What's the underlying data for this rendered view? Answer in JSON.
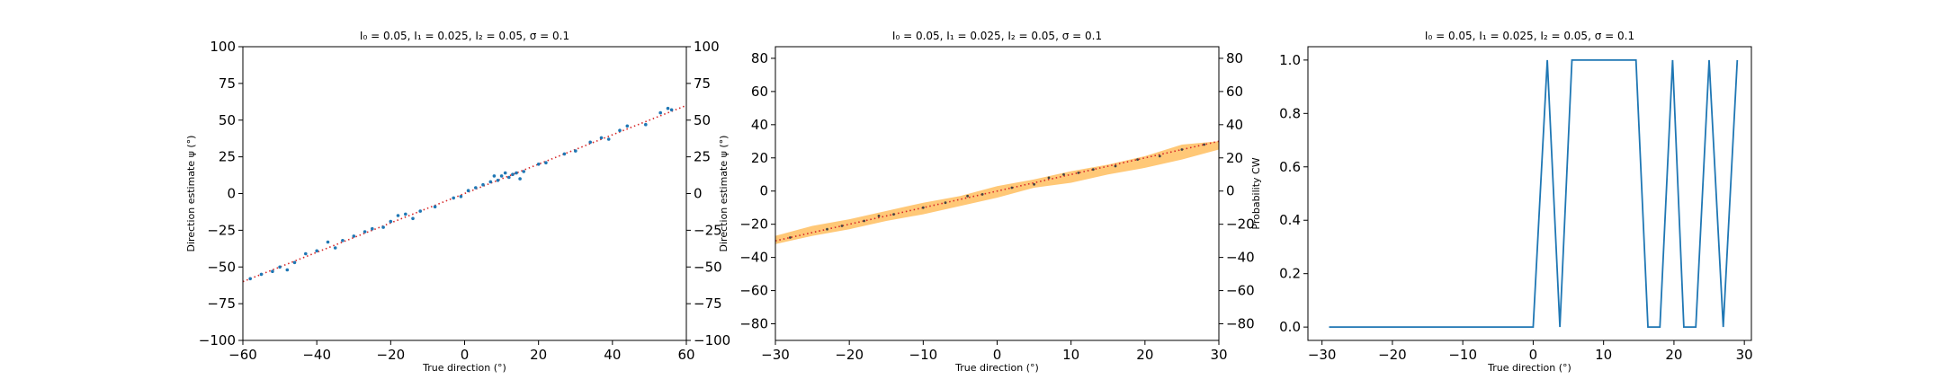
{
  "chart_data": [
    {
      "type": "scatter",
      "title": "I₀ = 0.05, I₁ = 0.025, I₂ = 0.05, σ = 0.1",
      "xlabel": "True direction (°)",
      "ylabel": "Direction estimate ψ (°)",
      "xlim": [
        -60,
        60
      ],
      "ylim": [
        -100,
        100
      ],
      "xticks": [
        -60,
        -40,
        -20,
        0,
        20,
        40,
        60
      ],
      "xtick_labels": [
        "−60",
        "−40",
        "−20",
        "0",
        "20",
        "40",
        "60"
      ],
      "yticks": [
        -100,
        -75,
        -50,
        -25,
        0,
        25,
        50,
        75,
        100
      ],
      "ytick_labels": [
        "−100",
        "−75",
        "−50",
        "−25",
        "0",
        "25",
        "50",
        "75",
        "100"
      ],
      "right_ytick_labels": [
        "−100",
        "−75",
        "−50",
        "−25",
        "0",
        "25",
        "50",
        "75",
        "100"
      ],
      "grid": false,
      "colors": {
        "points": "#1f77b4",
        "reference": "#d62728"
      },
      "reference_line": {
        "style": "dotted",
        "x": [
          -60,
          60
        ],
        "y": [
          -60,
          60
        ]
      },
      "series": [
        {
          "x": [
            -58,
            -55,
            -52,
            -50,
            -48,
            -46,
            -43,
            -40,
            -37,
            -35,
            -33,
            -30,
            -27,
            -25,
            -22,
            -20,
            -18,
            -16,
            -14,
            -12,
            -8,
            -3,
            -1,
            1,
            3,
            5,
            7,
            8,
            9,
            10,
            11,
            12,
            13,
            14,
            15,
            16,
            20,
            22,
            27,
            30,
            34,
            37,
            39,
            42,
            44,
            49,
            53,
            55,
            56
          ],
          "y": [
            -58,
            -55,
            -53,
            -50,
            -52,
            -47,
            -41,
            -39,
            -33,
            -37,
            -32,
            -29,
            -26,
            -24,
            -23,
            -19,
            -15,
            -14,
            -17,
            -12,
            -9,
            -3,
            -2,
            2,
            4,
            6,
            8,
            12,
            9,
            12,
            14,
            11,
            13,
            14,
            10,
            15,
            20,
            21,
            27,
            29,
            35,
            38,
            37,
            43,
            46,
            47,
            55,
            58,
            57
          ]
        }
      ]
    },
    {
      "type": "scatter",
      "title": "I₀ = 0.05, I₁ = 0.025, I₂ = 0.05, σ = 0.1",
      "xlabel": "True direction (°)",
      "ylabel": "Direction estimate ψ (°)",
      "xlim": [
        -30,
        30
      ],
      "ylim": [
        -90,
        87
      ],
      "xticks": [
        -30,
        -20,
        -10,
        0,
        10,
        20,
        30
      ],
      "xtick_labels": [
        "−30",
        "−20",
        "−10",
        "0",
        "10",
        "20",
        "30"
      ],
      "yticks": [
        -80,
        -60,
        -40,
        -20,
        0,
        20,
        40,
        60,
        80
      ],
      "ytick_labels": [
        "−80",
        "−60",
        "−40",
        "−20",
        "0",
        "20",
        "40",
        "60",
        "80"
      ],
      "right_ytick_labels": [
        "−80",
        "−60",
        "−40",
        "−20",
        "0",
        "20",
        "40",
        "60",
        "80"
      ],
      "grid": false,
      "colors": {
        "points": "#444444",
        "reference": "#d62728",
        "band": "#ffb54a"
      },
      "reference_line": {
        "style": "dotted",
        "x": [
          -30,
          30
        ],
        "y": [
          -30,
          30
        ]
      },
      "band": {
        "x": [
          -30,
          -25,
          -20,
          -15,
          -10,
          -5,
          0,
          5,
          10,
          15,
          20,
          25,
          30
        ],
        "lower": [
          -32,
          -27,
          -23,
          -18,
          -14,
          -9,
          -4,
          2,
          5,
          10,
          14,
          19,
          25
        ],
        "upper": [
          -27,
          -21,
          -17,
          -12,
          -7,
          -3,
          3,
          7,
          12,
          16,
          21,
          28,
          30
        ]
      },
      "series": [
        {
          "x": [
            -28,
            -23,
            -21,
            -18,
            -16,
            -14,
            -10,
            -7,
            -4,
            -2,
            2,
            5,
            7,
            9,
            11,
            13,
            16,
            19,
            22,
            25,
            28
          ],
          "y": [
            -28,
            -23,
            -21,
            -18,
            -15,
            -14,
            -10,
            -7,
            -3,
            -2,
            2,
            4,
            8,
            10,
            11,
            13,
            15,
            19,
            21,
            25,
            28
          ]
        }
      ]
    },
    {
      "type": "line",
      "title": "I₀ = 0.05, I₁ = 0.025, I₂ = 0.05, σ = 0.1",
      "xlabel": "True direction (°)",
      "ylabel": "Probability CW",
      "xlim": [
        -32,
        31
      ],
      "ylim": [
        -0.05,
        1.05
      ],
      "xticks": [
        -30,
        -20,
        -10,
        0,
        10,
        20,
        30
      ],
      "xtick_labels": [
        "−30",
        "−20",
        "−10",
        "0",
        "10",
        "20",
        "30"
      ],
      "yticks": [
        0.0,
        0.2,
        0.4,
        0.6,
        0.8,
        1.0
      ],
      "ytick_labels": [
        "0.0",
        "0.2",
        "0.4",
        "0.6",
        "0.8",
        "1.0"
      ],
      "grid": false,
      "colors": {
        "line": "#1f77b4"
      },
      "series": [
        {
          "x": [
            -29,
            -27,
            -25,
            -23,
            -21,
            -19,
            -17,
            -15,
            -13,
            -11,
            -9,
            -7,
            -5,
            -3,
            -1,
            0,
            2,
            3.8,
            5.5,
            7,
            9,
            11,
            13,
            14.6,
            16.3,
            18,
            19.8,
            21.4,
            23.1,
            25,
            27,
            29
          ],
          "y": [
            0,
            0,
            0,
            0,
            0,
            0,
            0,
            0,
            0,
            0,
            0,
            0,
            0,
            0,
            0,
            0,
            1,
            0,
            1,
            1,
            1,
            1,
            1,
            1,
            0,
            0,
            1,
            0,
            0,
            1,
            0,
            1
          ]
        }
      ]
    }
  ]
}
